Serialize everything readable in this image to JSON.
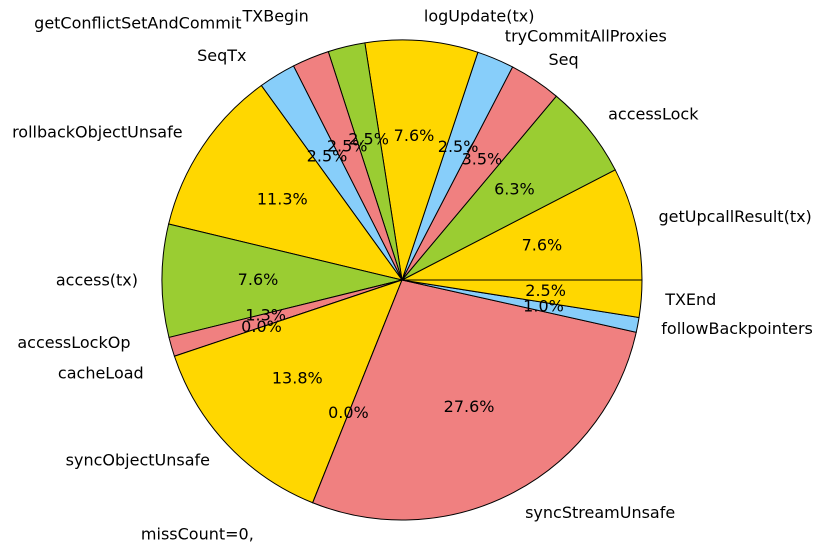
{
  "chart_data": {
    "type": "pie",
    "start_angle_deg": 0,
    "direction": "counterclockwise",
    "slices": [
      {
        "label": "getUpcallResult(tx)",
        "pct_label": "7.6%",
        "value": 7.6,
        "color": "#FFD700"
      },
      {
        "label": "accessLock",
        "pct_label": "6.3%",
        "value": 6.3,
        "color": "#9ACD32"
      },
      {
        "label": "Seq",
        "pct_label": "3.5%",
        "value": 3.5,
        "color": "#F08080"
      },
      {
        "label": "tryCommitAllProxies",
        "pct_label": "2.5%",
        "value": 2.5,
        "color": "#87CEFA"
      },
      {
        "label": "logUpdate(tx)",
        "pct_label": "7.6%",
        "value": 7.6,
        "color": "#FFD700"
      },
      {
        "label": "TXBegin",
        "pct_label": "2.5%",
        "value": 2.5,
        "color": "#9ACD32"
      },
      {
        "label": "getConflictSetAndCommit",
        "pct_label": "2.5%",
        "value": 2.5,
        "color": "#F08080"
      },
      {
        "label": "SeqTx",
        "pct_label": "2.5%",
        "value": 2.5,
        "color": "#87CEFA"
      },
      {
        "label": "rollbackObjectUnsafe",
        "pct_label": "11.3%",
        "value": 11.3,
        "color": "#FFD700"
      },
      {
        "label": "access(tx)",
        "pct_label": "7.6%",
        "value": 7.6,
        "color": "#9ACD32"
      },
      {
        "label": "accessLockOp",
        "pct_label": "1.3%",
        "value": 1.3,
        "color": "#F08080"
      },
      {
        "label": "cacheLoad",
        "pct_label": "0.0%",
        "value": 0.0,
        "color": "#87CEFA"
      },
      {
        "label": "syncObjectUnsafe",
        "pct_label": "13.8%",
        "value": 13.8,
        "color": "#FFD700"
      },
      {
        "label": "missCount=0,",
        "pct_label": "0.0%",
        "value": 0.0,
        "color": "#9ACD32"
      },
      {
        "label": "syncStreamUnsafe",
        "pct_label": "27.6%",
        "value": 27.6,
        "color": "#F08080"
      },
      {
        "label": "followBackpointers",
        "pct_label": "1.0%",
        "value": 1.0,
        "color": "#87CEFA"
      },
      {
        "label": "TXEnd",
        "pct_label": "2.5%",
        "value": 2.5,
        "color": "#FFD700"
      }
    ]
  }
}
